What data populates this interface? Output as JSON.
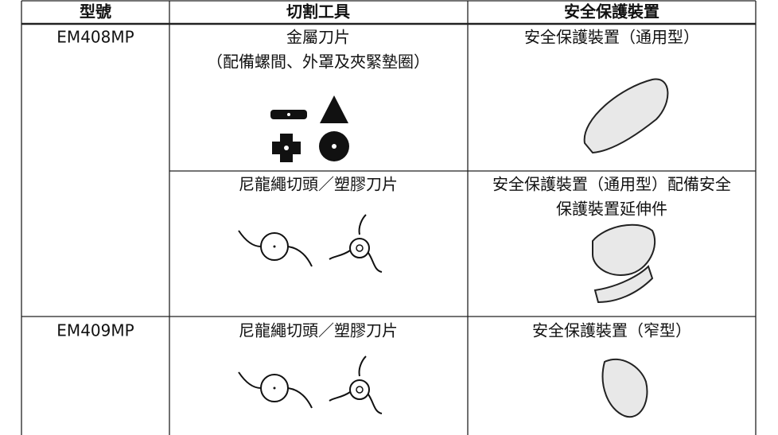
{
  "table": {
    "header": [
      "型號",
      "切割工具",
      "安全保護裝置"
    ],
    "rows": [
      {
        "model": "EM408MP",
        "tool": [
          "金屬刀片",
          "（配備螺間、外罩及夾緊墊圈）"
        ],
        "guard": [
          "安全保護裝置（通用型）"
        ]
      },
      {
        "tool": [
          "尼龍繩切頭／塑膠刀片"
        ],
        "guard": [
          "安全保護裝置（通用型）配備安全",
          "保護裝置延伸件"
        ]
      },
      {
        "model": "EM409MP",
        "tool": [
          "尼龍繩切頭／塑膠刀片"
        ],
        "guard": [
          "安全保護裝置（窄型）"
        ]
      }
    ]
  }
}
